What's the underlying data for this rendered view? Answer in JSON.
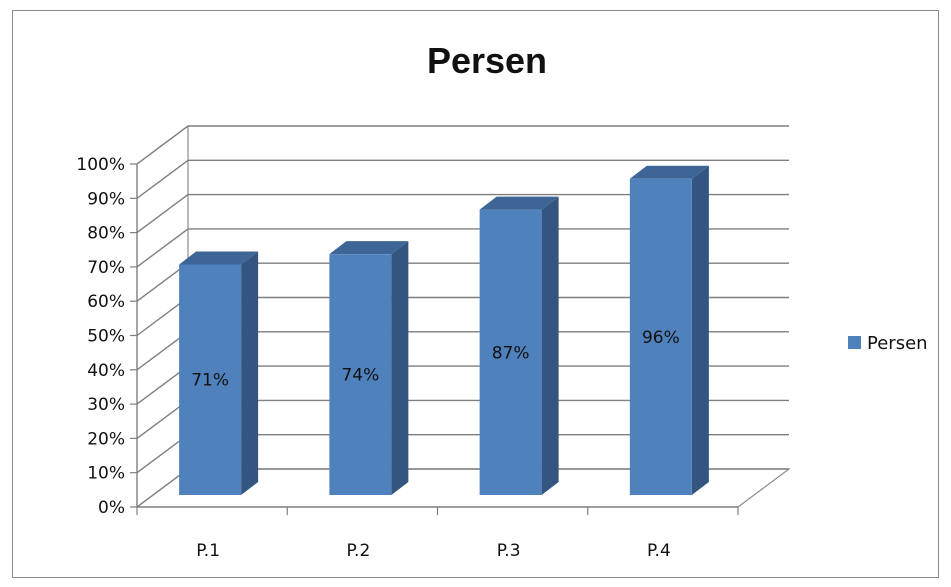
{
  "chart_data": {
    "type": "bar",
    "title": "Persen",
    "categories": [
      "P.1",
      "P.2",
      "P.3",
      "P.4"
    ],
    "series": [
      {
        "name": "Persen",
        "values": [
          71,
          74,
          87,
          96
        ],
        "color": "#4f81bd",
        "side_color": "#34557f",
        "top_color": "#3d6596"
      }
    ],
    "data_labels": [
      "71%",
      "74%",
      "87%",
      "96%"
    ],
    "y_ticks": [
      "0%",
      "10%",
      "20%",
      "30%",
      "40%",
      "50%",
      "60%",
      "70%",
      "80%",
      "90%",
      "100%"
    ],
    "ylim": [
      0,
      100
    ],
    "xlabel": "",
    "ylabel": "",
    "grid": true,
    "legend_position": "right",
    "style": "3d-column"
  }
}
